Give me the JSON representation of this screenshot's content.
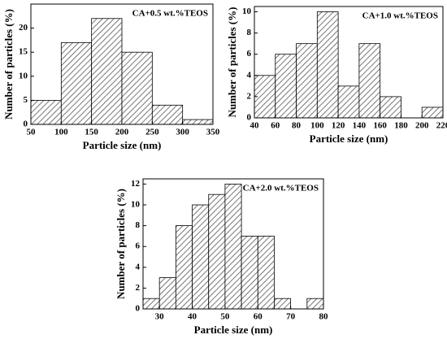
{
  "chart_data": [
    {
      "type": "histogram",
      "title": "CA+0.5 wt.%TEOS",
      "xlabel": "Particle size (nm)",
      "ylabel": "Number of particles  (%)",
      "bins": [
        50,
        100,
        150,
        200,
        250,
        300,
        350
      ],
      "values": [
        5,
        17,
        22,
        15,
        4,
        1
      ],
      "color": "#555555",
      "xlim": [
        50,
        350
      ],
      "ylim": [
        0,
        25
      ],
      "xticks": [
        50,
        100,
        150,
        200,
        250,
        300,
        350
      ],
      "yticks": [
        0,
        5,
        10,
        15,
        20
      ]
    },
    {
      "type": "histogram",
      "title": "CA+1.0 wt.%TEOS",
      "xlabel": "Particle size (nm)",
      "ylabel": "Number of particles  (%)",
      "bins": [
        40,
        60,
        80,
        100,
        120,
        140,
        160,
        180,
        200,
        220
      ],
      "values": [
        4,
        6,
        7,
        10,
        3,
        7,
        2,
        0,
        1
      ],
      "color": "#555555",
      "xlim": [
        40,
        220
      ],
      "ylim": [
        0,
        10.5
      ],
      "xticks": [
        40,
        60,
        80,
        100,
        120,
        140,
        160,
        180,
        200,
        220
      ],
      "yticks": [
        0,
        2,
        4,
        6,
        8,
        10
      ]
    },
    {
      "type": "histogram",
      "title": "CA+2.0 wt.%TEOS",
      "xlabel": "Particle size (nm)",
      "ylabel": "Number of particles  (%)",
      "bins": [
        25,
        30,
        35,
        40,
        45,
        50,
        55,
        60,
        65,
        70,
        75,
        80
      ],
      "values": [
        1,
        3,
        8,
        10,
        11,
        12,
        7,
        7,
        1,
        0,
        1
      ],
      "color": "#555555",
      "xlim": [
        25,
        80
      ],
      "ylim": [
        0,
        12.5
      ],
      "xticks": [
        30,
        40,
        50,
        60,
        70,
        80
      ],
      "yticks": [
        0,
        2,
        4,
        6,
        8,
        10,
        12
      ]
    }
  ]
}
